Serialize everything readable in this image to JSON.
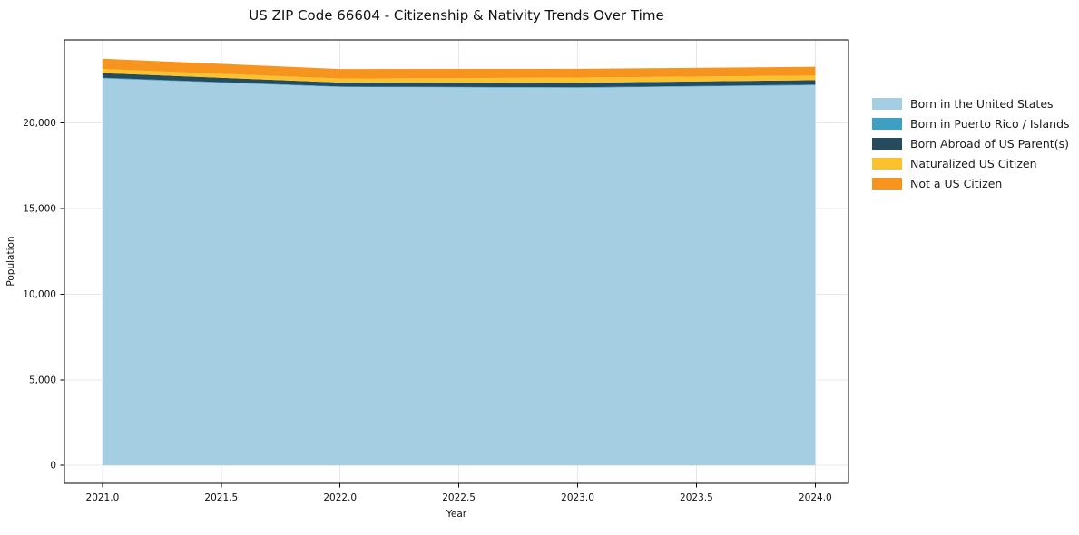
{
  "page": {
    "background": "#ffffff"
  },
  "chart_data": {
    "type": "area",
    "stacked": true,
    "title": "US ZIP Code 66604 - Citizenship & Nativity Trends Over Time",
    "xlabel": "Year",
    "ylabel": "Population",
    "x": [
      2021,
      2022,
      2023,
      2024
    ],
    "series": [
      {
        "name": "Born in the United States",
        "color": "#a6cee3",
        "values": [
          22600,
          22100,
          22050,
          22200
        ]
      },
      {
        "name": "Born in Puerto Rico / Islands",
        "color": "#3d9fc1",
        "values": [
          40,
          30,
          30,
          40
        ]
      },
      {
        "name": "Born Abroad of US Parent(s)",
        "color": "#254b5e",
        "values": [
          270,
          230,
          270,
          260
        ]
      },
      {
        "name": "Naturalized US Citizen",
        "color": "#fcc22d",
        "values": [
          240,
          230,
          300,
          270
        ]
      },
      {
        "name": "Not a US Citizen",
        "color": "#f7941e",
        "values": [
          600,
          560,
          510,
          510
        ]
      }
    ],
    "totals": [
      23750,
      23150,
      23160,
      23280
    ],
    "xticks": [
      {
        "value": 2021.0,
        "label": "2021.0"
      },
      {
        "value": 2021.5,
        "label": "2021.5"
      },
      {
        "value": 2022.0,
        "label": "2022.0"
      },
      {
        "value": 2022.5,
        "label": "2022.5"
      },
      {
        "value": 2023.0,
        "label": "2023.0"
      },
      {
        "value": 2023.5,
        "label": "2023.5"
      },
      {
        "value": 2024.0,
        "label": "2024.0"
      }
    ],
    "yticks": [
      {
        "value": 0,
        "label": "0"
      },
      {
        "value": 5000,
        "label": "5,000"
      },
      {
        "value": 10000,
        "label": "10,000"
      },
      {
        "value": 15000,
        "label": "15,000"
      },
      {
        "value": 20000,
        "label": "20,000"
      }
    ],
    "xlim": [
      2020.84,
      2024.14
    ],
    "ylim": [
      -1050,
      24850
    ],
    "grid": true,
    "legend_position": "right"
  },
  "style_colors": {
    "grid": "#e7e7e7",
    "spine": "#000000",
    "tick": "#000000",
    "tick_label": "#111111"
  }
}
